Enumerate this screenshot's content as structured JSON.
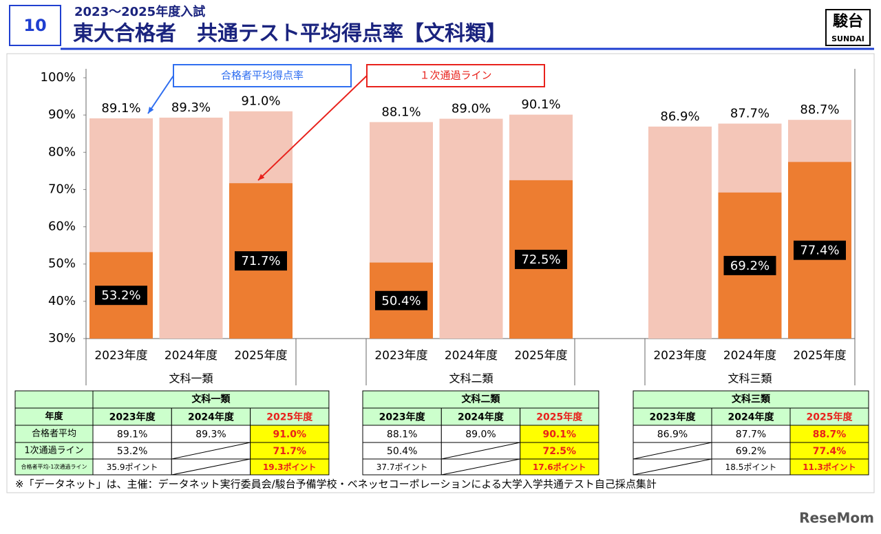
{
  "header": {
    "number": "10",
    "subtitle": "2023～2025年度入試",
    "title": "東大合格者　共通テスト平均得点率【文科類】",
    "logo_main": "駿台",
    "logo_sub": "SUNDAI"
  },
  "chart_data": {
    "type": "bar",
    "categories": [
      "2023年度",
      "2024年度",
      "2025年度",
      "2023年度",
      "2024年度",
      "2025年度",
      "2023年度",
      "2024年度",
      "2025年度"
    ],
    "groups": [
      "文科一類",
      "文科二類",
      "文科三類"
    ],
    "series": [
      {
        "name": "合格者平均得点率",
        "color": "#f4c6b8",
        "label_color": "#2f6ef0",
        "values": [
          89.1,
          89.3,
          91.0,
          88.1,
          89.0,
          90.1,
          86.9,
          87.7,
          88.7
        ],
        "value_labels": [
          "89.1%",
          "89.3%",
          "91.0%",
          "88.1%",
          "89.0%",
          "90.1%",
          "86.9%",
          "87.7%",
          "88.7%"
        ]
      },
      {
        "name": "１次通過ライン",
        "color": "#ed7d31",
        "label_color": "#e8211b",
        "values": [
          53.2,
          null,
          71.7,
          50.4,
          null,
          72.5,
          null,
          69.2,
          77.4
        ],
        "value_labels": [
          "53.2%",
          null,
          "71.7%",
          "50.4%",
          null,
          "72.5%",
          null,
          "69.2%",
          "77.4%"
        ]
      }
    ],
    "ylim": [
      30,
      100
    ],
    "yticks": [
      {
        "value": 30,
        "label": "30%"
      },
      {
        "value": 40,
        "label": "40%"
      },
      {
        "value": 50,
        "label": "50%"
      },
      {
        "value": 60,
        "label": "60%"
      },
      {
        "value": 70,
        "label": "70%"
      },
      {
        "value": 80,
        "label": "80%"
      },
      {
        "value": 90,
        "label": "90%"
      },
      {
        "value": 100,
        "label": "100%"
      }
    ],
    "grid": false
  },
  "tables": [
    {
      "group": "文科一類",
      "row_labels": [
        "年度",
        "合格者平均",
        "1次通過ライン",
        "合格者平均-1次通過ライン"
      ],
      "rows": [
        [
          "2023年度",
          "2024年度",
          "2025年度"
        ],
        [
          "89.1%",
          "89.3%",
          "91.0%"
        ],
        [
          "53.2%",
          null,
          "71.7%"
        ],
        [
          "35.9ポイント",
          null,
          "19.3ポイント"
        ]
      ]
    },
    {
      "group": "文科二類",
      "rows": [
        [
          "2023年度",
          "2024年度",
          "2025年度"
        ],
        [
          "88.1%",
          "89.0%",
          "90.1%"
        ],
        [
          "50.4%",
          null,
          "72.5%"
        ],
        [
          "37.7ポイント",
          null,
          "17.6ポイント"
        ]
      ]
    },
    {
      "group": "文科三類",
      "rows": [
        [
          "2023年度",
          "2024年度",
          "2025年度"
        ],
        [
          "86.9%",
          "87.7%",
          "88.7%"
        ],
        [
          null,
          "69.2%",
          "77.4%"
        ],
        [
          null,
          "18.5ポイント",
          "11.3ポイント"
        ]
      ]
    }
  ],
  "footnote": "※「データネット」は、主催：データネット実行委員会/駿台予備学校・ベネッセコーポレーションによる大学入学共通テスト自己採点集計",
  "watermark": "ReseMom"
}
